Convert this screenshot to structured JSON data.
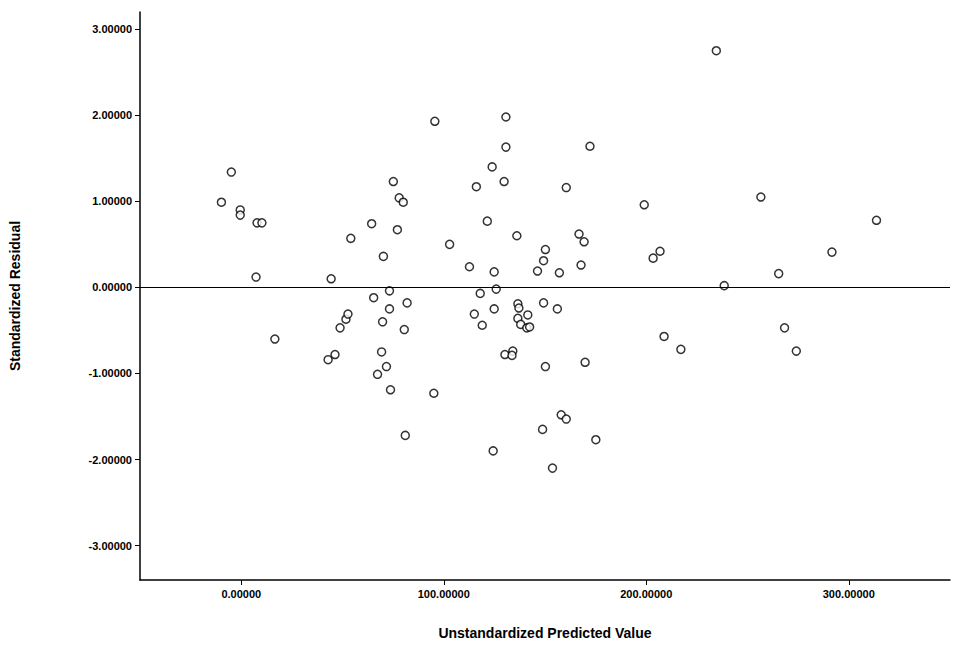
{
  "chart_data": {
    "type": "scatter",
    "x_label": "Unstandardized Predicted Value",
    "y_label": "Standardized Residual",
    "color": "#000000",
    "marker": "circle_open",
    "reference_y": 0,
    "xlim": [
      -50,
      350
    ],
    "ylim": [
      -3.4,
      3.2
    ],
    "xticks": [
      {
        "value": 0,
        "label": "0.00000"
      },
      {
        "value": 100,
        "label": "100.00000"
      },
      {
        "value": 200,
        "label": "200.00000"
      },
      {
        "value": 300,
        "label": "300.00000"
      }
    ],
    "yticks": [
      {
        "value": -3,
        "label": "-3.00000"
      },
      {
        "value": -2,
        "label": "-2.00000"
      },
      {
        "value": -1,
        "label": "-1.00000"
      },
      {
        "value": 0,
        "label": "0.00000"
      },
      {
        "value": 1,
        "label": "1.00000"
      },
      {
        "value": 2,
        "label": "2.00000"
      },
      {
        "value": 3,
        "label": "3.00000"
      }
    ],
    "grid": false,
    "x": [
      -9.8,
      -4.9,
      -0.5,
      -0.5,
      7.8,
      10.2,
      7.3,
      16.6,
      42.9,
      46.3,
      44.4,
      48.8,
      51.7,
      54.1,
      52.7,
      64.4,
      65.4,
      67.3,
      69.3,
      70.2,
      69.8,
      71.7,
      73.2,
      73.2,
      73.7,
      75.1,
      77.1,
      78.0,
      80.0,
      81.9,
      80.5,
      81.0,
      95.1,
      95.6,
      102.9,
      112.7,
      115.1,
      116.1,
      118.0,
      119.0,
      121.5,
      123.9,
      124.9,
      125.9,
      124.9,
      124.4,
      129.8,
      130.7,
      130.7,
      130.2,
      134.1,
      133.7,
      136.1,
      136.6,
      137.1,
      136.6,
      138.0,
      141.0,
      142.4,
      141.5,
      146.3,
      149.3,
      150.2,
      149.3,
      150.2,
      148.8,
      153.7,
      156.1,
      157.1,
      158.0,
      160.5,
      160.5,
      166.8,
      167.8,
      169.3,
      169.8,
      172.2,
      175.1,
      199.0,
      203.4,
      206.8,
      208.8,
      217.1,
      234.6,
      238.5,
      256.6,
      265.4,
      268.3,
      274.1,
      291.7,
      313.7
    ],
    "values": [
      0.99,
      1.34,
      0.9,
      0.84,
      0.75,
      0.75,
      0.12,
      -0.6,
      -0.84,
      -0.78,
      0.1,
      -0.47,
      -0.37,
      0.57,
      -0.31,
      0.74,
      -0.12,
      -1.01,
      -0.75,
      0.36,
      -0.4,
      -0.92,
      -0.25,
      -0.04,
      -1.19,
      1.23,
      0.67,
      1.04,
      0.99,
      -0.18,
      -0.49,
      -1.72,
      -1.23,
      1.93,
      0.5,
      0.24,
      -0.31,
      1.17,
      -0.07,
      -0.44,
      0.77,
      1.4,
      0.18,
      -0.02,
      -0.25,
      -1.9,
      1.23,
      1.98,
      1.63,
      -0.78,
      -0.74,
      -0.79,
      0.6,
      -0.19,
      -0.24,
      -0.36,
      -0.43,
      -0.47,
      -0.46,
      -0.32,
      0.19,
      0.31,
      0.44,
      -0.18,
      -0.92,
      -1.65,
      -2.1,
      -0.25,
      0.17,
      -1.48,
      -1.53,
      1.16,
      0.62,
      0.26,
      0.53,
      -0.87,
      1.64,
      -1.77,
      0.96,
      0.34,
      0.42,
      -0.57,
      -0.72,
      2.75,
      0.02,
      1.05,
      0.16,
      -0.47,
      -0.74,
      0.41,
      0.78
    ]
  }
}
